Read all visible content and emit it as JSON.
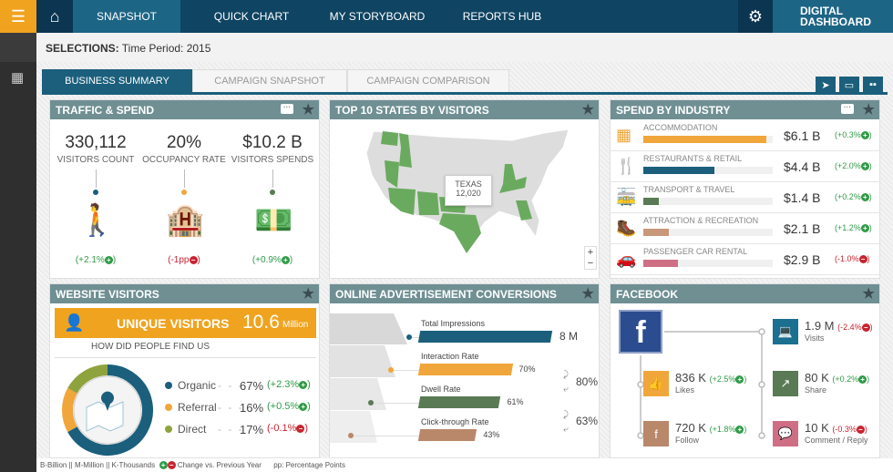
{
  "nav": {
    "items": [
      "SNAPSHOT",
      "QUICK CHART",
      "MY STORYBOARD",
      "REPORTS HUB"
    ],
    "brand_line1": "DIGITAL",
    "brand_line2": "DASHBOARD",
    "icons": [
      "menu-icon",
      "home-icon",
      "gear-icon",
      "calendar-clock-icon"
    ]
  },
  "selections": {
    "label": "SELECTIONS:",
    "value": "Time Period: 2015"
  },
  "tabs": [
    "BUSINESS SUMMARY",
    "CAMPAIGN SNAPSHOT",
    "CAMPAIGN COMPARISON"
  ],
  "toolbar_icons": [
    "send-icon",
    "comment-icon",
    "grid-icon"
  ],
  "traffic": {
    "title": "TRAFFIC & SPEND",
    "kpis": [
      {
        "value": "330,112",
        "label": "VISITORS COUNT",
        "change": "(+2.1%",
        "dir": "up",
        "color": "#1b5f7c"
      },
      {
        "value": "20%",
        "label": "OCCUPANCY RATE",
        "change": "(-1pp",
        "dir": "dn",
        "color": "#f0a63a"
      },
      {
        "value": "$10.2 B",
        "label": "VISITORS SPENDS",
        "change": "(+0.9%",
        "dir": "up",
        "color": "#5a7a55"
      }
    ]
  },
  "states": {
    "title": "TOP 10 STATES BY VISITORS",
    "tooltip_state": "TEXAS",
    "tooltip_value": "12,020",
    "zoom_in": "+",
    "zoom_out": "−",
    "highlight_color": "#6aaa5f"
  },
  "industry": {
    "title": "SPEND BY INDUSTRY",
    "rows": [
      {
        "name": "ACCOMMODATION",
        "value": "$6.1 B",
        "change": "(+0.3%",
        "dir": "up",
        "fill": 0.95,
        "color": "#f0a63a"
      },
      {
        "name": "RESTAURANTS  & RETAIL",
        "value": "$4.4 B",
        "change": "(+2.0%",
        "dir": "up",
        "fill": 0.55,
        "color": "#1b5f7c"
      },
      {
        "name": "TRANSPORT & TRAVEL",
        "value": "$1.4 B",
        "change": "(+0.2%",
        "dir": "up",
        "fill": 0.12,
        "color": "#5a7a55"
      },
      {
        "name": "ATTRACTION & RECREATION",
        "value": "$2.1 B",
        "change": "(+1.2%",
        "dir": "up",
        "fill": 0.2,
        "color": "#c9987a"
      },
      {
        "name": "PASSENGER CAR RENTAL",
        "value": "$2.9 B",
        "change": "(-1.0%",
        "dir": "dn",
        "fill": 0.27,
        "color": "#cf6f86"
      }
    ]
  },
  "website": {
    "title": "WEBSITE VISITORS",
    "unique_label": "UNIQUE VISITORS",
    "unique_value": "10.6",
    "unique_unit": "Million",
    "subtitle": "HOW DID PEOPLE FIND  US",
    "sources": [
      {
        "name": "Organic",
        "pct": "67%",
        "change": "(+2.3%",
        "dir": "up",
        "color": "#1b5f7c",
        "share": 67
      },
      {
        "name": "Referral",
        "pct": "16%",
        "change": "(+0.5%",
        "dir": "up",
        "color": "#f0a63a",
        "share": 16
      },
      {
        "name": "Direct",
        "pct": "17%",
        "change": "(-0.1%",
        "dir": "dn",
        "color": "#8ea33d",
        "share": 17
      }
    ]
  },
  "ads": {
    "title": "ONLINE ADVERTISEMENT CONVERSIONS",
    "stages": [
      {
        "label": "Total Impressions",
        "value": "8 M",
        "fill": 1.0,
        "color": "#1b5f7c"
      },
      {
        "label": "Interaction Rate",
        "value": "70%",
        "fill": 0.7,
        "color": "#f0a63a"
      },
      {
        "label": "Dwell Rate",
        "value": "61%",
        "fill": 0.61,
        "color": "#5a7a55"
      },
      {
        "label": "Click-through Rate",
        "value": "43%",
        "fill": 0.43,
        "color": "#b9876a"
      }
    ],
    "conversions": [
      "80%",
      "63%"
    ]
  },
  "facebook": {
    "title": "FACEBOOK",
    "items": [
      {
        "value": "1.9 M",
        "change": "(-2.4%",
        "dir": "dn",
        "label": "Visits",
        "color": "#1b6f8f",
        "icon": "laptop-user-icon"
      },
      {
        "value": "836 K",
        "change": "(+2.5%",
        "dir": "up",
        "label": "Likes",
        "color": "#f0a63a",
        "icon": "thumbs-up-icon"
      },
      {
        "value": "80 K",
        "change": "(+0.2%",
        "dir": "up",
        "label": "Share",
        "color": "#5a7a55",
        "icon": "share-icon"
      },
      {
        "value": "720 K",
        "change": "(+1.8%",
        "dir": "up",
        "label": "Follow",
        "color": "#b9876a",
        "icon": "follow-icon"
      },
      {
        "value": "10 K",
        "change": "(-0.3%",
        "dir": "dn",
        "label": "Comment / Reply",
        "color": "#cf6f86",
        "icon": "comment-icon"
      }
    ]
  },
  "footer": {
    "units": "B-Billion || M-Million || K-Thousands",
    "change_note": "Change vs. Previous Year",
    "pp_note": "pp: Percentage Points"
  }
}
